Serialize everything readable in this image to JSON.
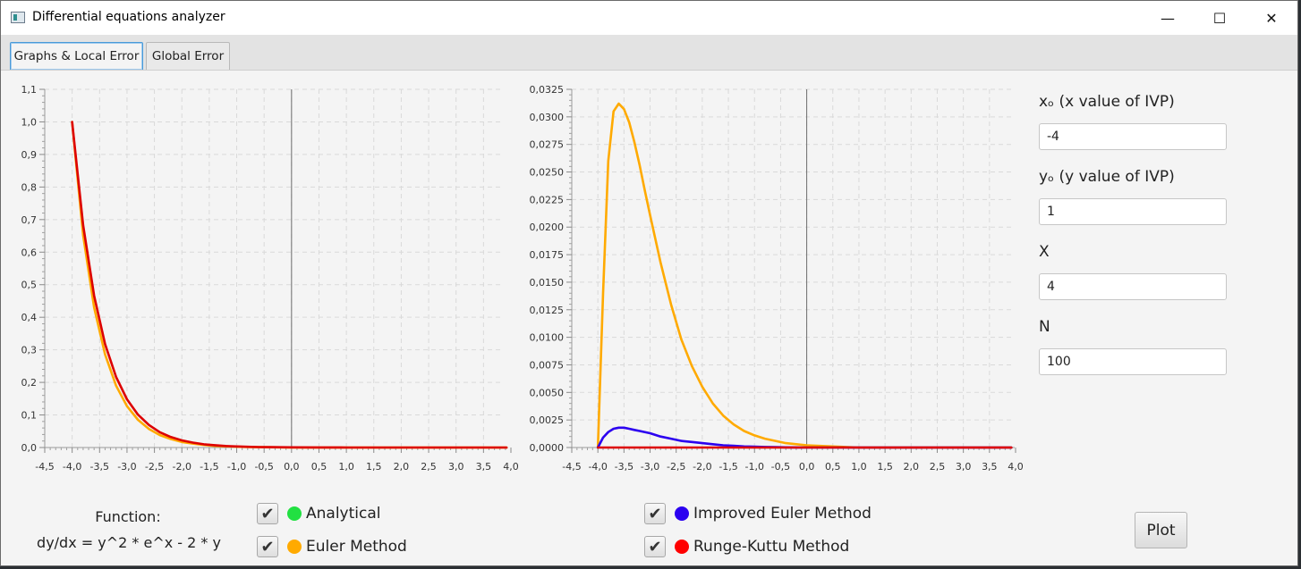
{
  "window": {
    "title": "Differential equations analyzer",
    "minimize_glyph": "—",
    "maximize_glyph": "☐",
    "close_glyph": "✕"
  },
  "tabs": [
    {
      "label": "Graphs & Local Error",
      "active": true
    },
    {
      "label": "Global Error",
      "active": false
    }
  ],
  "inputs": [
    {
      "label": "xₒ (x value of IVP)",
      "value": "-4"
    },
    {
      "label": "yₒ (y value of IVP)",
      "value": "1"
    },
    {
      "label": "X",
      "value": "4"
    },
    {
      "label": "N",
      "value": "100"
    }
  ],
  "function": {
    "label": "Function:",
    "expression": "dy/dx = y^2 * e^x - 2 * y"
  },
  "methods": [
    {
      "label": "Analytical",
      "checked": true,
      "color": "#22e042"
    },
    {
      "label": "Euler Method",
      "checked": true,
      "color": "#ffaa00"
    },
    {
      "label": "Improved Euler Method",
      "checked": true,
      "color": "#2b00f0"
    },
    {
      "label": "Runge-Kuttu Method",
      "checked": true,
      "color": "#ff0000"
    }
  ],
  "check_glyph": "✔",
  "plot_button": "Plot",
  "chart_data": [
    {
      "type": "line",
      "xlim": [
        -4.5,
        4.0
      ],
      "ylim": [
        0,
        1.1
      ],
      "x_ticks": [
        "-4,5",
        "-4,0",
        "-3,5",
        "-3,0",
        "-2,5",
        "-2,0",
        "-1,5",
        "-1,0",
        "-0,5",
        "0,0",
        "0,5",
        "1,0",
        "1,5",
        "2,0",
        "2,5",
        "3,0",
        "3,5",
        "4,0"
      ],
      "y_ticks": [
        "0,0",
        "0,1",
        "0,2",
        "0,3",
        "0,4",
        "0,5",
        "0,6",
        "0,7",
        "0,8",
        "0,9",
        "1,0",
        "1,1"
      ],
      "grid": true,
      "series": [
        {
          "color": "#ffaa00",
          "x": [
            -4,
            -3.8,
            -3.6,
            -3.4,
            -3.2,
            -3,
            -2.8,
            -2.6,
            -2.4,
            -2.2,
            -2,
            -1.8,
            -1.6,
            -1.4,
            -1.2,
            -1,
            -0.8,
            -0.6,
            -0.4,
            -0.2,
            0,
            0.5,
            1,
            1.5,
            2,
            2.5,
            3,
            3.5,
            3.92
          ],
          "y": [
            1,
            0.652,
            0.43,
            0.286,
            0.19,
            0.127,
            0.085,
            0.057,
            0.038,
            0.026,
            0.017,
            0.012,
            0.008,
            0.005,
            0.0036,
            0.0024,
            0.0016,
            0.0011,
            0.0007,
            0.0005,
            0.0003,
            0.0001,
            0,
            0,
            0,
            0,
            0,
            0,
            0
          ]
        },
        {
          "color": "#dd0000",
          "x": [
            -4,
            -3.8,
            -3.6,
            -3.4,
            -3.2,
            -3,
            -2.8,
            -2.6,
            -2.4,
            -2.2,
            -2,
            -1.8,
            -1.6,
            -1.4,
            -1.2,
            -1,
            -0.8,
            -0.6,
            -0.4,
            -0.2,
            0,
            0.5,
            1,
            1.5,
            2,
            2.5,
            3,
            3.5,
            3.92
          ],
          "y": [
            1,
            0.683,
            0.466,
            0.318,
            0.217,
            0.148,
            0.101,
            0.069,
            0.047,
            0.032,
            0.022,
            0.015,
            0.01,
            0.007,
            0.0047,
            0.0032,
            0.0022,
            0.0015,
            0.001,
            0.0007,
            0.0005,
            0.0002,
            0.0001,
            0,
            0,
            0,
            0,
            0,
            0
          ]
        }
      ]
    },
    {
      "type": "line",
      "xlim": [
        -4.5,
        4.0
      ],
      "ylim": [
        0,
        0.0325
      ],
      "x_ticks": [
        "-4,5",
        "-4,0",
        "-3,5",
        "-3,0",
        "-2,5",
        "-2,0",
        "-1,5",
        "-1,0",
        "-0,5",
        "0,0",
        "0,5",
        "1,0",
        "1,5",
        "2,0",
        "2,5",
        "3,0",
        "3,5",
        "4,0"
      ],
      "y_ticks": [
        "0,0000",
        "0,0025",
        "0,0050",
        "0,0075",
        "0,0100",
        "0,0125",
        "0,0150",
        "0,0175",
        "0,0200",
        "0,0225",
        "0,0250",
        "0,0275",
        "0,0300",
        "0,0325"
      ],
      "grid": true,
      "series": [
        {
          "color": "#ffaa00",
          "x": [
            -4,
            -3.9,
            -3.8,
            -3.7,
            -3.6,
            -3.5,
            -3.4,
            -3.3,
            -3.2,
            -3.1,
            -3,
            -2.8,
            -2.6,
            -2.4,
            -2.2,
            -2,
            -1.8,
            -1.6,
            -1.4,
            -1.2,
            -1,
            -0.8,
            -0.6,
            -0.4,
            -0.2,
            0,
            0.5,
            1,
            1.5,
            2,
            3,
            3.92
          ],
          "y": [
            0,
            0.014,
            0.026,
            0.0305,
            0.0312,
            0.0307,
            0.0295,
            0.0277,
            0.0256,
            0.0233,
            0.0211,
            0.0168,
            0.013,
            0.0098,
            0.0074,
            0.0055,
            0.004,
            0.0029,
            0.0021,
            0.0015,
            0.0011,
            0.0008,
            0.0006,
            0.0004,
            0.0003,
            0.0002,
            0.0001,
            0,
            0,
            0,
            0,
            0
          ]
        },
        {
          "color": "#2b00f0",
          "x": [
            -4,
            -3.9,
            -3.8,
            -3.7,
            -3.6,
            -3.5,
            -3.4,
            -3.3,
            -3.2,
            -3,
            -2.8,
            -2.6,
            -2.4,
            -2.2,
            -2,
            -1.8,
            -1.6,
            -1.4,
            -1.2,
            -1,
            -0.8,
            -0.6,
            -0.4,
            -0.2,
            0,
            0.5,
            1,
            2,
            3,
            3.92
          ],
          "y": [
            0,
            0.0009,
            0.0014,
            0.0017,
            0.0018,
            0.0018,
            0.0017,
            0.0016,
            0.0015,
            0.0013,
            0.001,
            0.0008,
            0.0006,
            0.0005,
            0.0004,
            0.0003,
            0.0002,
            0.00015,
            0.0001,
            7e-05,
            5e-05,
            3e-05,
            2e-05,
            1e-05,
            0,
            0,
            0,
            0,
            0,
            0
          ]
        },
        {
          "color": "#dd0000",
          "x": [
            -4,
            3.92
          ],
          "y": [
            0,
            0
          ]
        }
      ]
    }
  ]
}
